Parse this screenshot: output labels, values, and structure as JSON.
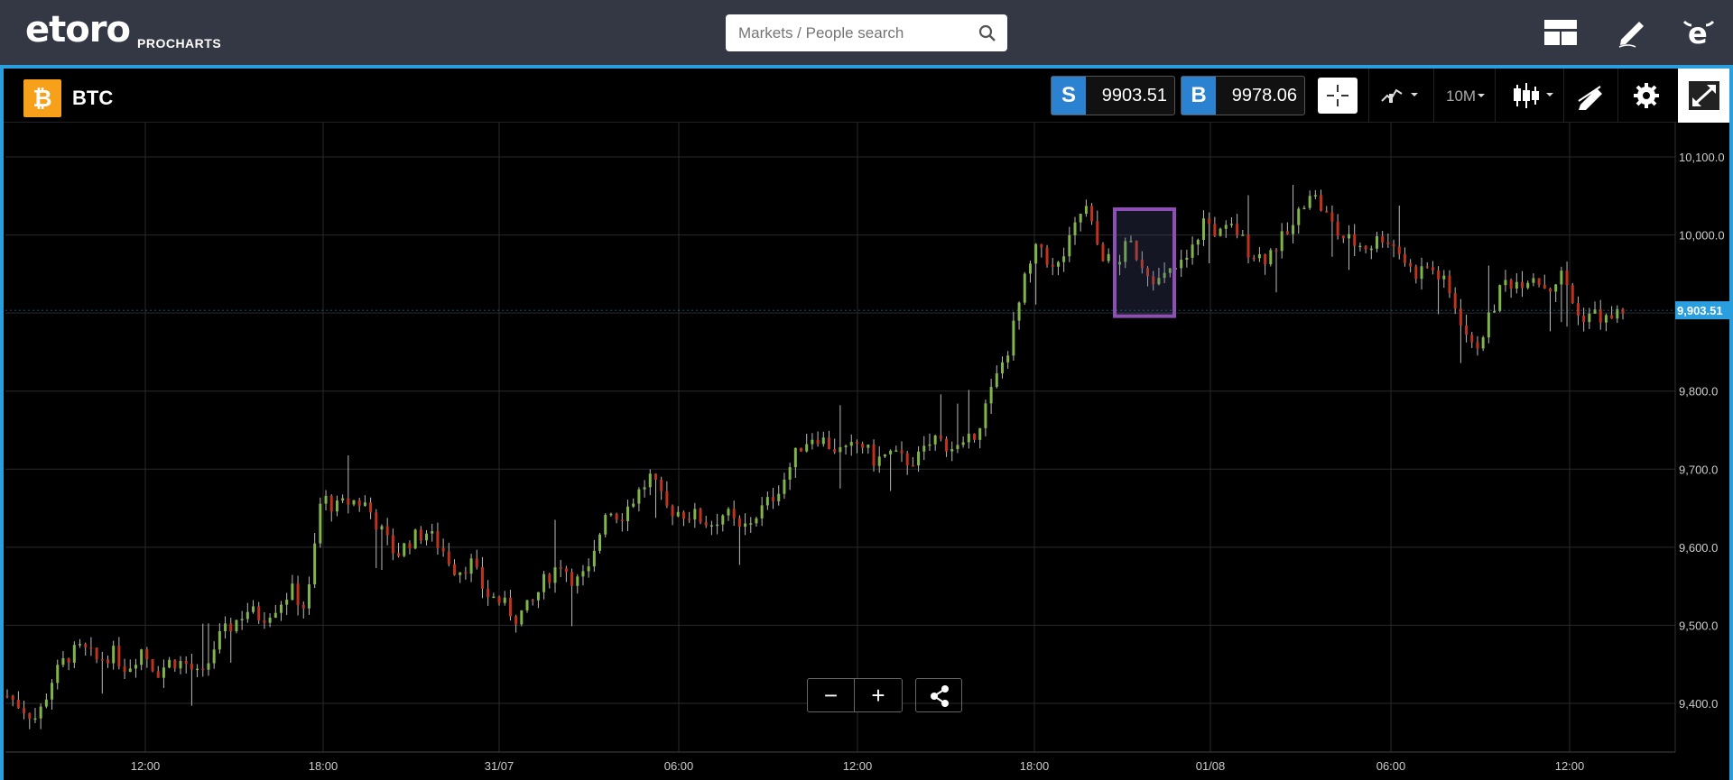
{
  "header": {
    "logo": "etoro",
    "logo_sub": "PROCHARTS",
    "search": {
      "placeholder": "Markets / People search"
    }
  },
  "instrument": {
    "symbol_badge": "₿",
    "name": "BTC",
    "sell_tag": "S",
    "sell_price": "9903.51",
    "buy_tag": "B",
    "buy_price": "9978.06",
    "timeframe": "10M",
    "current_price_label": "9,903.51"
  },
  "icons": {
    "layout": "layout-icon",
    "pencil": "pencil-icon",
    "profile": "etoro-profile-icon",
    "search": "search-icon",
    "crosshair": "crosshair-icon",
    "indicators": "indicators-icon",
    "candles": "candlestick-icon",
    "draw": "drawing-tools-icon",
    "settings": "gear-icon",
    "expand": "expand-icon",
    "share": "share-icon"
  },
  "zoom": {
    "minus": "−",
    "plus": "+"
  },
  "colors": {
    "accent": "#2a9fe0",
    "up": "#7fb54a",
    "down": "#c0321e",
    "highlight": "#8e4fb5",
    "btc": "#f7a019"
  },
  "chart_data": {
    "type": "candlestick",
    "y_ticks": [
      "10,100.0",
      "10,000.0",
      "9,900.0",
      "9,800.0",
      "9,700.0",
      "9,600.0",
      "9,500.0",
      "9,400.0"
    ],
    "x_ticks": [
      "12:00",
      "18:00",
      "31/07",
      "06:00",
      "12:00",
      "18:00",
      "01/08",
      "06:00",
      "12:00"
    ],
    "ylim": [
      9350,
      10140
    ],
    "close_path": [
      [
        0,
        9410
      ],
      [
        6,
        9395
      ],
      [
        12,
        9380
      ],
      [
        18,
        9430
      ],
      [
        24,
        9460
      ],
      [
        30,
        9470
      ],
      [
        36,
        9455
      ],
      [
        42,
        9465
      ],
      [
        48,
        9445
      ],
      [
        54,
        9470
      ],
      [
        60,
        9440
      ],
      [
        66,
        9455
      ],
      [
        72,
        9450
      ],
      [
        78,
        9430
      ],
      [
        84,
        9480
      ],
      [
        90,
        9500
      ],
      [
        96,
        9520
      ],
      [
        102,
        9510
      ],
      [
        108,
        9525
      ],
      [
        114,
        9545
      ],
      [
        120,
        9520
      ],
      [
        126,
        9665
      ],
      [
        132,
        9650
      ],
      [
        138,
        9660
      ],
      [
        144,
        9655
      ],
      [
        150,
        9620
      ],
      [
        156,
        9590
      ],
      [
        162,
        9610
      ],
      [
        168,
        9620
      ],
      [
        174,
        9600
      ],
      [
        180,
        9570
      ],
      [
        186,
        9580
      ],
      [
        192,
        9540
      ],
      [
        198,
        9530
      ],
      [
        204,
        9510
      ],
      [
        210,
        9525
      ],
      [
        216,
        9560
      ],
      [
        222,
        9580
      ],
      [
        228,
        9555
      ],
      [
        234,
        9570
      ],
      [
        240,
        9650
      ],
      [
        246,
        9640
      ],
      [
        252,
        9665
      ],
      [
        258,
        9690
      ],
      [
        264,
        9650
      ],
      [
        270,
        9645
      ],
      [
        276,
        9640
      ],
      [
        282,
        9630
      ],
      [
        288,
        9645
      ],
      [
        294,
        9620
      ],
      [
        300,
        9640
      ],
      [
        306,
        9660
      ],
      [
        312,
        9690
      ],
      [
        318,
        9730
      ],
      [
        324,
        9745
      ],
      [
        330,
        9730
      ],
      [
        336,
        9720
      ],
      [
        342,
        9735
      ],
      [
        348,
        9710
      ],
      [
        354,
        9720
      ],
      [
        360,
        9710
      ],
      [
        366,
        9715
      ],
      [
        372,
        9740
      ],
      [
        378,
        9730
      ],
      [
        384,
        9725
      ],
      [
        390,
        9760
      ],
      [
        396,
        9810
      ],
      [
        402,
        9860
      ],
      [
        408,
        9940
      ],
      [
        414,
        9990
      ],
      [
        420,
        9950
      ],
      [
        426,
        9990
      ],
      [
        432,
        10040
      ],
      [
        438,
        9980
      ],
      [
        444,
        9960
      ],
      [
        450,
        9990
      ],
      [
        456,
        9960
      ],
      [
        462,
        9940
      ],
      [
        468,
        9955
      ],
      [
        474,
        9970
      ],
      [
        480,
        10020
      ],
      [
        486,
        10000
      ],
      [
        492,
        10010
      ],
      [
        498,
        9980
      ],
      [
        504,
        9970
      ],
      [
        510,
        9990
      ],
      [
        516,
        10010
      ],
      [
        522,
        10060
      ],
      [
        528,
        10030
      ],
      [
        534,
        10000
      ],
      [
        540,
        9990
      ],
      [
        546,
        9985
      ],
      [
        552,
        10000
      ],
      [
        558,
        9980
      ],
      [
        564,
        9950
      ],
      [
        570,
        9960
      ],
      [
        576,
        9940
      ],
      [
        582,
        9900
      ],
      [
        588,
        9850
      ],
      [
        594,
        9890
      ],
      [
        600,
        9940
      ],
      [
        606,
        9940
      ],
      [
        612,
        9950
      ],
      [
        618,
        9930
      ],
      [
        624,
        9950
      ],
      [
        630,
        9895
      ],
      [
        636,
        9900
      ],
      [
        642,
        9890
      ],
      [
        648,
        9905
      ]
    ],
    "highlight_range": [
      481,
      503
    ]
  }
}
